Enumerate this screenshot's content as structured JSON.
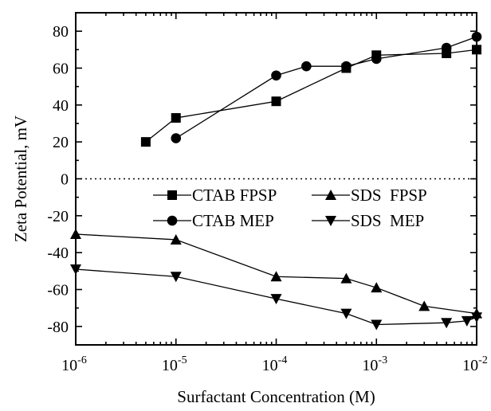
{
  "chart_data": {
    "type": "line",
    "x_scale": "log",
    "xlim": [
      1e-06,
      0.01
    ],
    "ylim": [
      -90,
      90
    ],
    "xlabel": "Surfactant Concentration (M)",
    "ylabel": "Zeta Potential, mV",
    "x_tick_labels": [
      {
        "base": "10",
        "exp": "-6",
        "value": 1e-06
      },
      {
        "base": "10",
        "exp": "-5",
        "value": 1e-05
      },
      {
        "base": "10",
        "exp": "-4",
        "value": 0.0001
      },
      {
        "base": "10",
        "exp": "-3",
        "value": 0.001
      },
      {
        "base": "10",
        "exp": "-2",
        "value": 0.01
      }
    ],
    "y_ticks": [
      -80,
      -60,
      -40,
      -20,
      0,
      20,
      40,
      60,
      80
    ],
    "y_tick_labels": [
      "-80",
      "-60",
      "-40",
      "-20",
      "0",
      "20",
      "40",
      "60",
      "80"
    ],
    "reference_line": {
      "y": 0,
      "style": "dotted"
    },
    "legend_position": "center-right",
    "series": [
      {
        "name": "CTAB FPSP",
        "marker": "square",
        "x": [
          5e-06,
          1e-05,
          0.0001,
          0.0005,
          0.001,
          0.005,
          0.01
        ],
        "y": [
          20,
          33,
          42,
          60,
          67,
          68,
          70
        ]
      },
      {
        "name": "SDS  FPSP",
        "marker": "triangle-up",
        "x": [
          1e-06,
          1e-05,
          0.0001,
          0.0005,
          0.001,
          0.003,
          0.01
        ],
        "y": [
          -30,
          -33,
          -53,
          -54,
          -59,
          -69,
          -73
        ]
      },
      {
        "name": "CTAB MEP",
        "marker": "circle",
        "x": [
          1e-05,
          0.0001,
          0.0002,
          0.0005,
          0.001,
          0.005,
          0.01
        ],
        "y": [
          22,
          56,
          61,
          61,
          65,
          71,
          77
        ]
      },
      {
        "name": "SDS  MEP",
        "marker": "triangle-down",
        "x": [
          1e-06,
          1e-05,
          0.0001,
          0.0005,
          0.001,
          0.005,
          0.008,
          0.01
        ],
        "y": [
          -49,
          -53,
          -65,
          -73,
          -79,
          -78,
          -77,
          -75
        ]
      }
    ]
  }
}
